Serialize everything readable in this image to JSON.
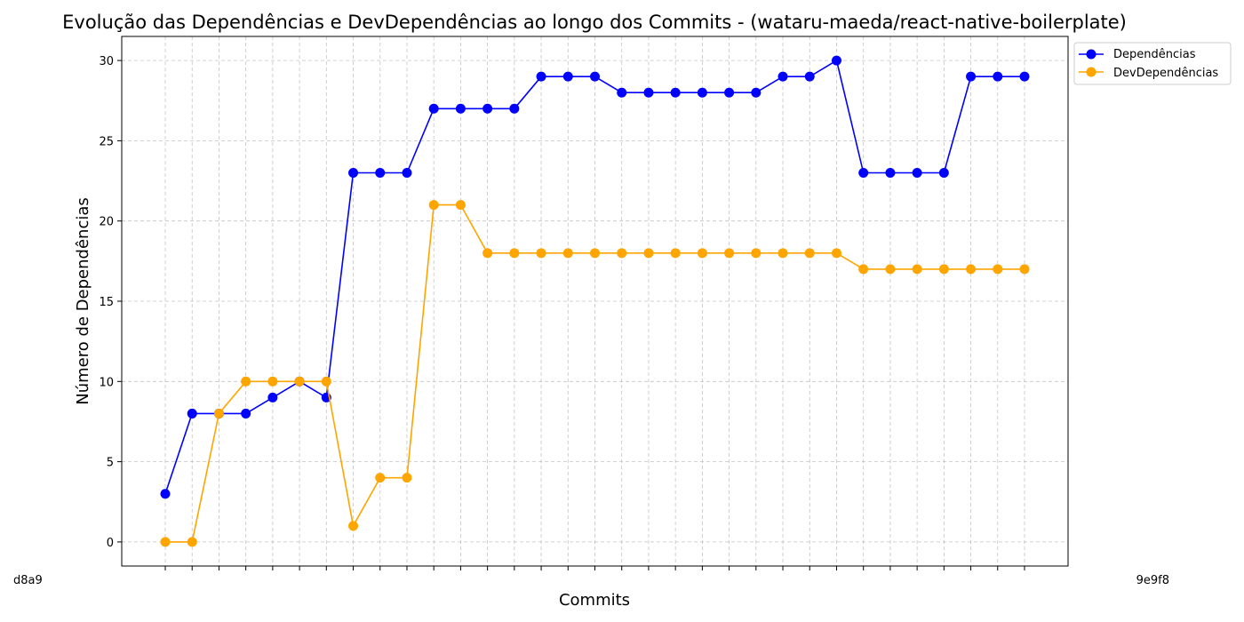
{
  "chart_data": {
    "type": "line",
    "title": "Evolução das Dependências e DevDependências ao longo dos Commits - (wataru-maeda/react-native-boilerplate)",
    "xlabel": "Commits",
    "ylabel": "Número de Dependências",
    "ylim": [
      -1.5,
      31.5
    ],
    "yticks": [
      0,
      5,
      10,
      15,
      20,
      25,
      30
    ],
    "grid": true,
    "legend": "upper-right-outside",
    "x_tick_first": "d8a9",
    "x_tick_last": "9e9f8",
    "series": [
      {
        "name": "Dependências",
        "color": "#0000ff",
        "values": [
          3,
          8,
          8,
          8,
          9,
          10,
          9,
          23,
          23,
          23,
          27,
          27,
          27,
          27,
          29,
          29,
          29,
          28,
          28,
          28,
          28,
          28,
          28,
          29,
          29,
          30,
          23,
          23,
          23,
          23,
          29,
          29,
          29
        ]
      },
      {
        "name": "DevDependências",
        "color": "#ffa500",
        "values": [
          0,
          0,
          8,
          10,
          10,
          10,
          10,
          1,
          4,
          4,
          21,
          21,
          18,
          18,
          18,
          18,
          18,
          18,
          18,
          18,
          18,
          18,
          18,
          18,
          18,
          18,
          17,
          17,
          17,
          17,
          17,
          17,
          17
        ]
      }
    ]
  }
}
